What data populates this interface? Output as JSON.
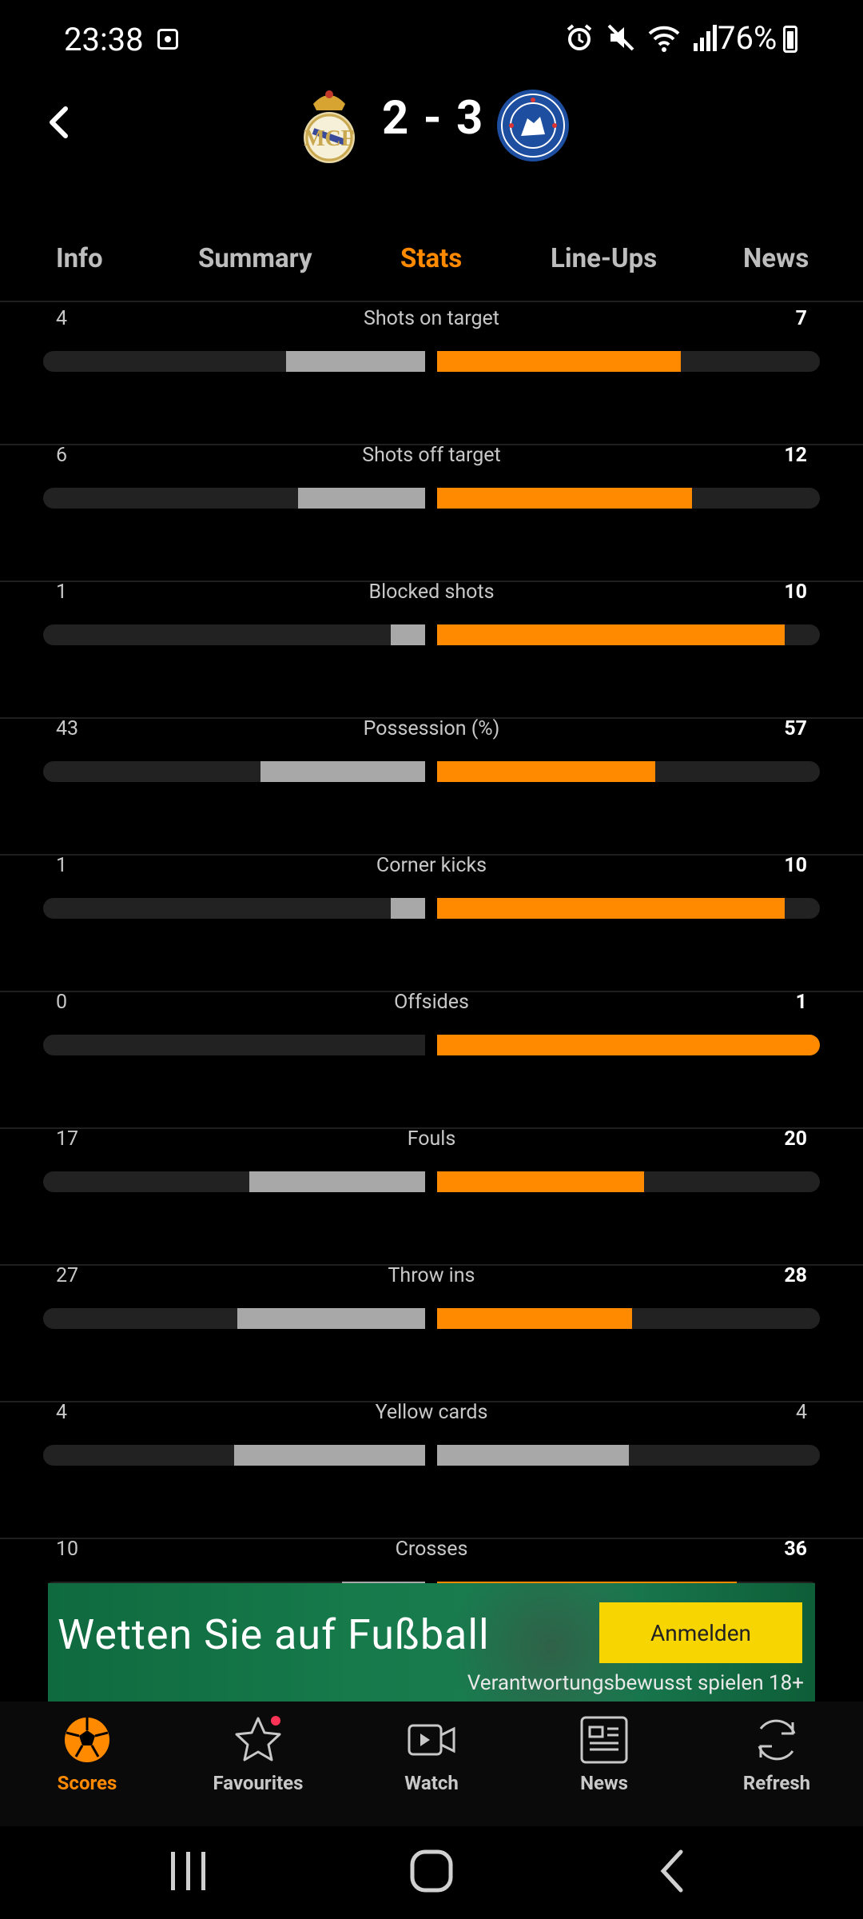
{
  "status_bar": {
    "time": "23:38",
    "battery": "76%"
  },
  "match": {
    "score": "2 - 3",
    "home_crest": "real-madrid-crest",
    "away_crest": "chelsea-crest"
  },
  "tabs": [
    {
      "label": "Info"
    },
    {
      "label": "Summary"
    },
    {
      "label": "Stats",
      "active": true
    },
    {
      "label": "Line-Ups"
    },
    {
      "label": "News"
    }
  ],
  "stats": [
    {
      "label": "Shots on target",
      "home": "4",
      "away": "7"
    },
    {
      "label": "Shots off target",
      "home": "6",
      "away": "12"
    },
    {
      "label": "Blocked shots",
      "home": "1",
      "away": "10"
    },
    {
      "label": "Possession (%)",
      "home": "43",
      "away": "57"
    },
    {
      "label": "Corner kicks",
      "home": "1",
      "away": "10"
    },
    {
      "label": "Offsides",
      "home": "0",
      "away": "1"
    },
    {
      "label": "Fouls",
      "home": "17",
      "away": "20"
    },
    {
      "label": "Throw ins",
      "home": "27",
      "away": "28"
    },
    {
      "label": "Yellow cards",
      "home": "4",
      "away": "4"
    },
    {
      "label": "Crosses",
      "home": "10",
      "away": "36"
    }
  ],
  "ad": {
    "headline": "Wetten Sie auf Fußball",
    "cta": "Anmelden",
    "note": "Verantwortungsbewusst spielen  18+"
  },
  "bottom_nav": [
    {
      "label": "Scores",
      "icon": "soccer-ball-icon",
      "active": true
    },
    {
      "label": "Favourites",
      "icon": "star-icon"
    },
    {
      "label": "Watch",
      "icon": "video-icon"
    },
    {
      "label": "News",
      "icon": "newspaper-icon"
    },
    {
      "label": "Refresh",
      "icon": "refresh-icon"
    }
  ],
  "colors": {
    "accent": "#ff8a00",
    "home_bar": "#a8a8a8",
    "track": "#222222",
    "background": "#000000"
  }
}
